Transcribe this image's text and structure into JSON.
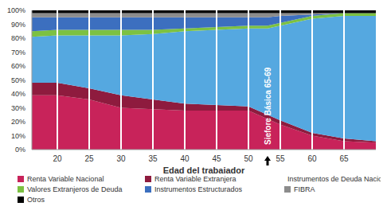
{
  "chart_data": {
    "type": "area",
    "stacked": true,
    "grid": true,
    "x_label": "Edad del trabajador",
    "x": [
      16,
      20,
      25,
      30,
      35,
      40,
      45,
      50,
      53,
      55,
      60,
      65,
      70
    ],
    "xlim": [
      16,
      70
    ],
    "xticks": [
      20,
      25,
      30,
      35,
      40,
      45,
      50,
      55,
      60,
      65
    ],
    "ylim": [
      0,
      100
    ],
    "yticks": [
      {
        "value": 0,
        "label": "0%"
      },
      {
        "value": 10,
        "label": "10%"
      },
      {
        "value": 20,
        "label": "20%"
      },
      {
        "value": 30,
        "label": "30%"
      },
      {
        "value": 40,
        "label": "40%"
      },
      {
        "value": 50,
        "label": "50%"
      },
      {
        "value": 60,
        "label": "60%"
      },
      {
        "value": 70,
        "label": "70%"
      },
      {
        "value": 80,
        "label": "80%"
      },
      {
        "value": 90,
        "label": "90%"
      },
      {
        "value": 100,
        "label": "100%"
      }
    ],
    "annotations": [
      {
        "text": "Siefore Básica 65-69",
        "x": 53
      }
    ],
    "series": [
      {
        "name": "Renta Variable Nacional",
        "color": "#C8235A",
        "values": [
          39,
          39,
          36,
          30,
          29,
          28,
          28,
          28,
          22,
          18,
          10,
          6,
          5
        ]
      },
      {
        "name": "Renta Variable Extranjera",
        "color": "#8E1B3E",
        "values": [
          9,
          9,
          8,
          9,
          7,
          5,
          4,
          3,
          3,
          3,
          2,
          2,
          1
        ]
      },
      {
        "name": "Instrumentos de Deuda Nacional",
        "color": "#55A8E0",
        "values": [
          33,
          34,
          38,
          43,
          47,
          52,
          54,
          56,
          62,
          68,
          82,
          88,
          90
        ]
      },
      {
        "name": "Valores Extranjeros de Deuda",
        "color": "#7CC142",
        "values": [
          4,
          4,
          4,
          4,
          3,
          2,
          2,
          2,
          2,
          2,
          2,
          2,
          2
        ]
      },
      {
        "name": "Instrumentos Estructurados",
        "color": "#3C6FBF",
        "values": [
          10,
          9,
          9,
          9,
          9,
          8,
          7,
          6,
          6,
          5,
          1,
          0,
          0
        ]
      },
      {
        "name": "FIBRA",
        "color": "#8C8C8C",
        "values": [
          3,
          3,
          3,
          3,
          3,
          3,
          3,
          3,
          3,
          2,
          1,
          0,
          0
        ]
      },
      {
        "name": "Otros",
        "color": "#000000",
        "values": [
          2,
          2,
          2,
          2,
          2,
          2,
          2,
          2,
          2,
          2,
          2,
          2,
          2
        ]
      }
    ]
  }
}
